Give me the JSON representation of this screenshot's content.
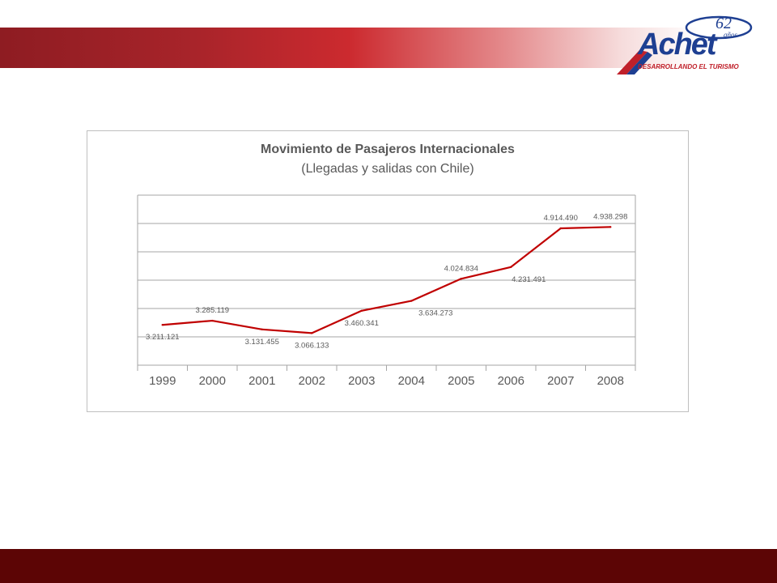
{
  "brand": {
    "logo_text": "Achet",
    "logo_tagline": "DESARROLLANDO EL TURISMO",
    "anniversary_number": "62",
    "anniversary_word": "años"
  },
  "colors": {
    "header_band": "#a8242a",
    "footer_band": "#5c0505",
    "series": "#c00000",
    "logo_blue": "#1e3f92"
  },
  "chart_data": {
    "type": "line",
    "title": "Movimiento de Pasajeros Internacionales",
    "subtitle": "(Llegadas y salidas con Chile)",
    "categories": [
      "1999",
      "2000",
      "2001",
      "2002",
      "2003",
      "2004",
      "2005",
      "2006",
      "2007",
      "2008"
    ],
    "values": [
      3211121,
      3285119,
      3131455,
      3066133,
      3460341,
      3634273,
      4024834,
      4231491,
      4914490,
      4938298
    ],
    "labels": [
      "3.211.121",
      "3.285.119",
      "3.131.455",
      "3.066.133",
      "3.460.341",
      "3.634.273",
      "4.024.834",
      "4.231.491",
      "4.914.490",
      "4.938.298"
    ],
    "ylim": [
      2500000,
      5500000
    ],
    "yticks_step": 500000,
    "y_axis_labels_shown": false,
    "grid": true,
    "legend": "none"
  }
}
